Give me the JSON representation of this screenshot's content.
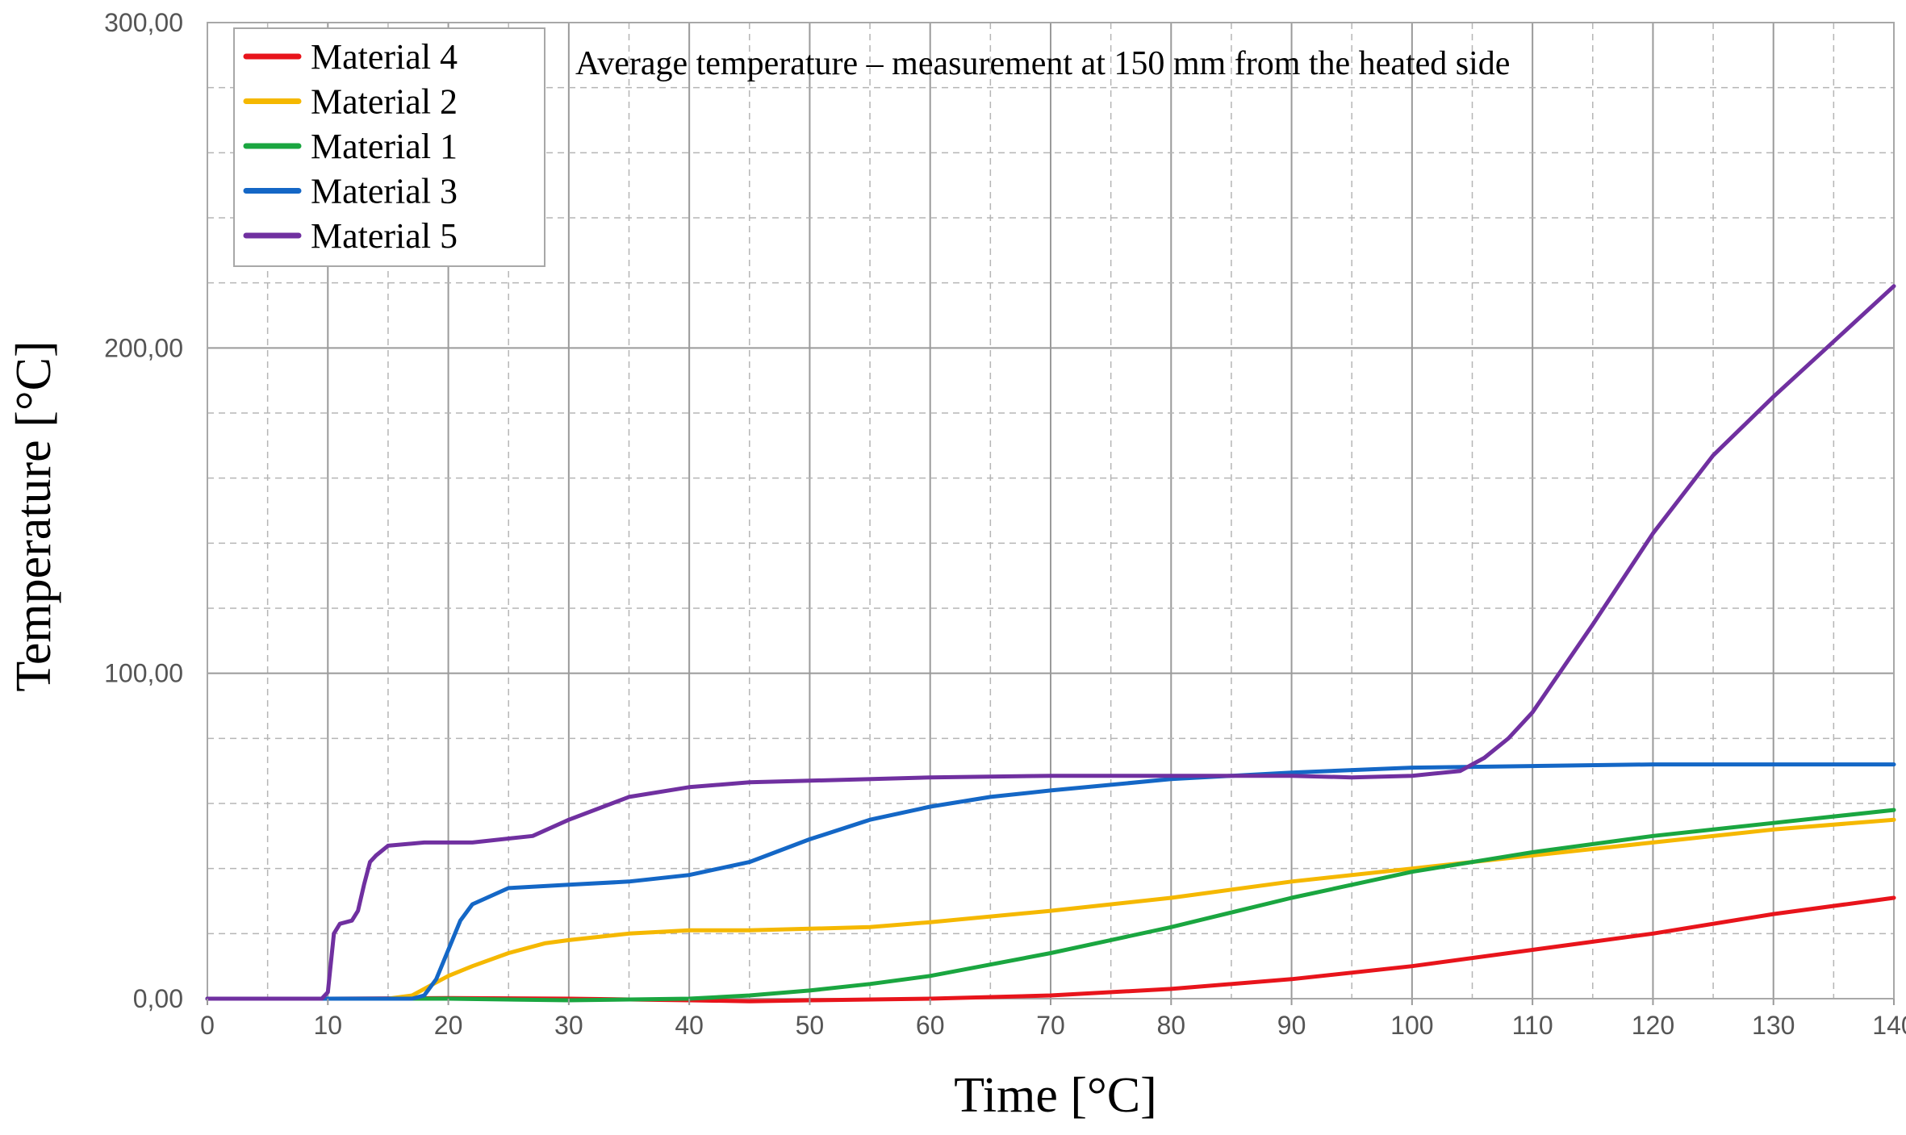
{
  "chart_data": {
    "type": "line",
    "title": "Average temperature – measurement at 150 mm from the heated side",
    "xlabel": "Time [°C]",
    "ylabel": "Temperature [°C]",
    "xlim": [
      0,
      140
    ],
    "ylim": [
      0,
      300
    ],
    "x_ticks": [
      0,
      10,
      20,
      30,
      40,
      50,
      60,
      70,
      80,
      90,
      100,
      110,
      120,
      130,
      140
    ],
    "x_tick_labels": [
      "0",
      "10",
      "20",
      "30",
      "40",
      "50",
      "60",
      "70",
      "80",
      "90",
      "100",
      "110",
      "120",
      "130",
      "140"
    ],
    "y_ticks": [
      0,
      100,
      200,
      300
    ],
    "y_tick_labels": [
      "0,00",
      "100,00",
      "200,00",
      "300,00"
    ],
    "grid": true,
    "legend_position": "top-left",
    "series": [
      {
        "name": "Material 4",
        "color": "#e8141b",
        "x": [
          0,
          10,
          20,
          30,
          40,
          45,
          50,
          60,
          70,
          80,
          90,
          100,
          110,
          120,
          130,
          140
        ],
        "y": [
          0,
          0,
          0.2,
          0,
          -0.5,
          -0.8,
          -0.5,
          0,
          1,
          3,
          6,
          10,
          15,
          20,
          26,
          31
        ]
      },
      {
        "name": "Material 2",
        "color": "#f5b800",
        "x": [
          0,
          10,
          15,
          17,
          18,
          19,
          20,
          22,
          25,
          28,
          30,
          35,
          40,
          45,
          50,
          55,
          60,
          70,
          80,
          90,
          100,
          110,
          120,
          130,
          140
        ],
        "y": [
          0,
          0,
          0,
          1,
          3,
          5,
          7,
          10,
          14,
          17,
          18,
          20,
          21,
          21,
          21.5,
          22,
          23.5,
          27,
          31,
          36,
          40,
          44,
          48,
          52,
          55
        ]
      },
      {
        "name": "Material 1",
        "color": "#1aa640",
        "x": [
          0,
          10,
          20,
          30,
          40,
          45,
          50,
          55,
          60,
          65,
          70,
          75,
          80,
          90,
          100,
          110,
          120,
          130,
          140
        ],
        "y": [
          0,
          0,
          0,
          -0.5,
          0,
          1,
          2.5,
          4.5,
          7,
          10.5,
          14,
          18,
          22,
          31,
          39,
          45,
          50,
          54,
          58
        ]
      },
      {
        "name": "Material 3",
        "color": "#1467c6",
        "x": [
          0,
          10,
          17,
          18,
          19,
          20,
          21,
          22,
          25,
          30,
          35,
          40,
          45,
          50,
          55,
          60,
          65,
          70,
          80,
          90,
          100,
          110,
          120,
          130,
          140
        ],
        "y": [
          0,
          0,
          0,
          1,
          6,
          15,
          24,
          29,
          34,
          35,
          36,
          38,
          42,
          49,
          55,
          59,
          62,
          64,
          67.5,
          69.5,
          71,
          71.5,
          72,
          72,
          72
        ]
      },
      {
        "name": "Material 5",
        "color": "#7030a0",
        "x": [
          0,
          9.5,
          10,
          10.5,
          11,
          12,
          12.5,
          13,
          13.5,
          14,
          15,
          18,
          22,
          27,
          30,
          35,
          40,
          45,
          50,
          60,
          70,
          80,
          90,
          95,
          100,
          104,
          106,
          108,
          110,
          115,
          120,
          125,
          130,
          135,
          140
        ],
        "y": [
          0,
          0,
          2,
          20,
          23,
          24,
          27,
          35,
          42,
          44,
          47,
          48,
          48,
          50,
          55,
          62,
          65,
          66.5,
          67,
          68,
          68.5,
          68.5,
          68.5,
          68,
          68.5,
          70,
          74,
          80,
          88,
          115,
          143,
          167,
          185,
          202,
          219
        ]
      }
    ]
  }
}
